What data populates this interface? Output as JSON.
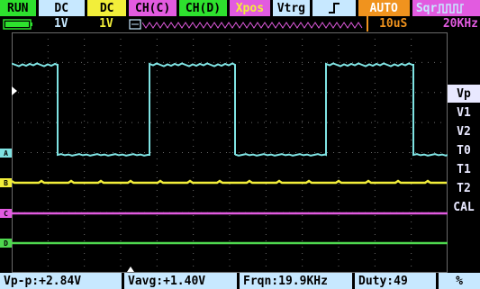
{
  "top_bar": {
    "run": "RUN",
    "ch_a_coupling": "DC",
    "ch_b_coupling": "DC",
    "ch_c": "CH(C)",
    "ch_d": "CH(D)",
    "xpos": "Xpos",
    "vtrg": "Vtrg",
    "trigger_edge": "⊤",
    "mode": "AUTO",
    "square_output": "Sqr"
  },
  "second_bar": {
    "ch_a_scale": "1V",
    "ch_b_scale": "1V",
    "timebase": "10uS",
    "frequency_setting": "20KHz"
  },
  "right_menu": [
    "Vp",
    "V1",
    "V2",
    "T0",
    "T1",
    "T2",
    "CAL"
  ],
  "right_menu_selected": "Vp",
  "channel_markers": [
    "A",
    "B",
    "C",
    "D"
  ],
  "measurements": {
    "vpp": "Vp-p:+2.84V",
    "vavg": "Vavg:+1.40V",
    "frequency": "Frqn:19.9KHz",
    "duty": "Duty:49",
    "unit": "%"
  },
  "colors": {
    "channel_a": "#7fe3e3",
    "channel_b": "#f2ee3a",
    "channel_c": "#e25be0",
    "channel_d": "#4fd84f",
    "grid": "#6a6a6a",
    "menu_bg": "#c7e8ff"
  }
}
